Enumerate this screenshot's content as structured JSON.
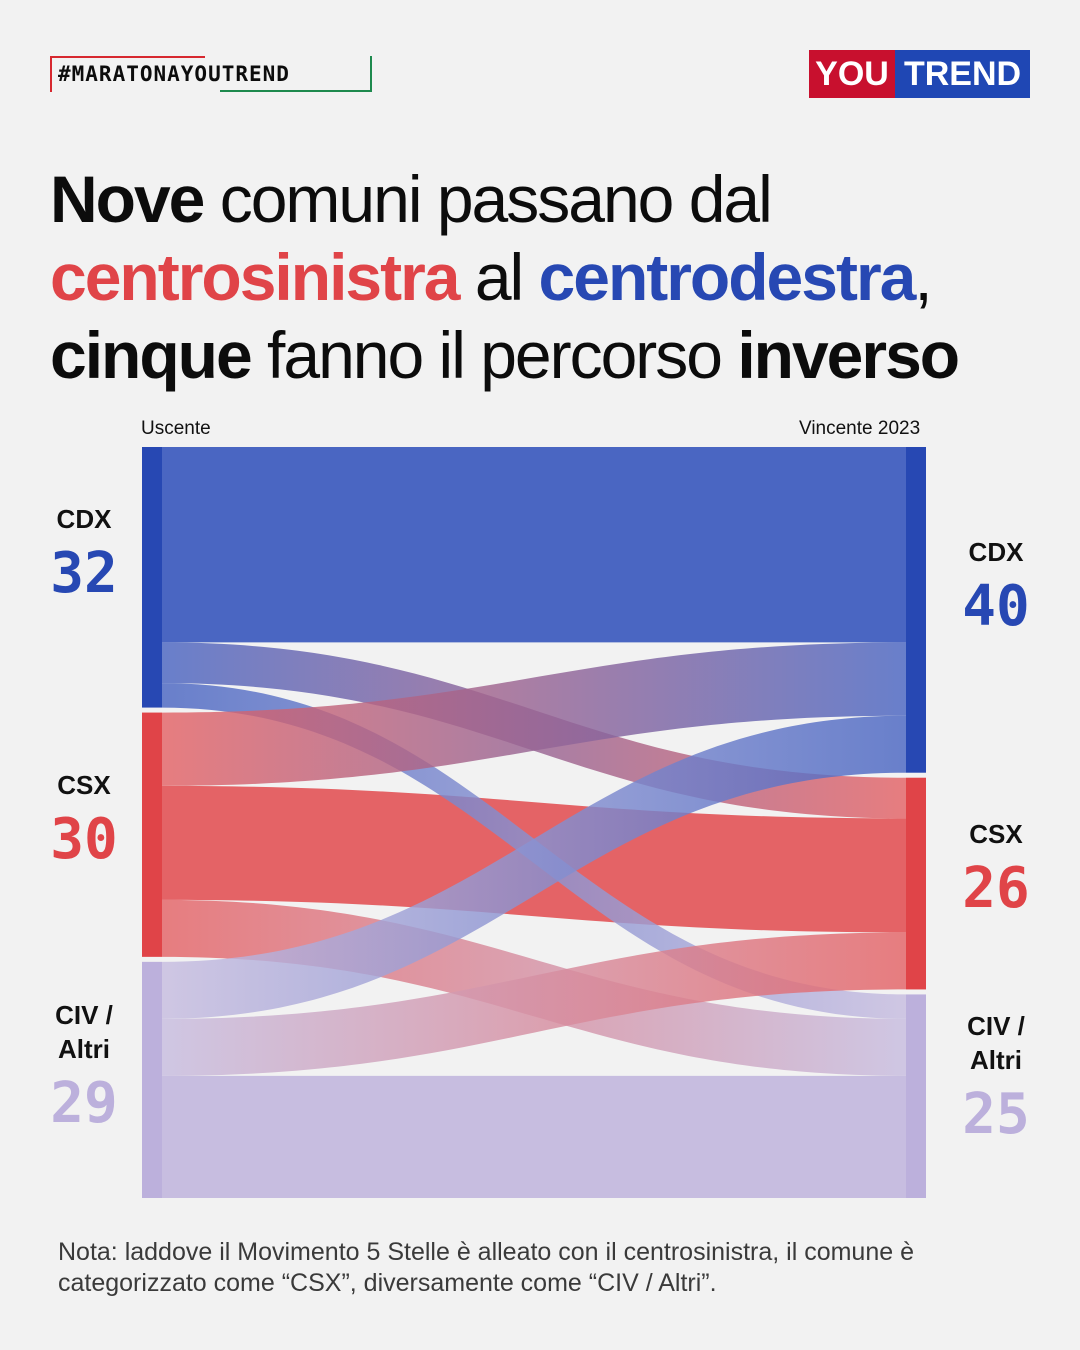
{
  "header": {
    "hashtag": "#MARATONAYOUTREND",
    "logo_part1": "YOU",
    "logo_part2": "TREND"
  },
  "title": {
    "w1": "Nove",
    "w2": " comuni passano dal",
    "w3": "centrosinistra",
    "w4": " al ",
    "w5": "centrodestra",
    "w6": ",",
    "w7": "cinque",
    "w8": " fanno il percorso ",
    "w9": "inverso"
  },
  "colors": {
    "cdx": "#2748b3",
    "csx": "#e04448",
    "civ": "#bcb0dc",
    "cdx_flow": "#4a66c2",
    "csx_flow": "#e46366",
    "civ_flow": "#c7bde0"
  },
  "chart_data": {
    "type": "sankey",
    "left_label": "Uscente",
    "right_label": "Vincente 2023",
    "left_nodes": [
      {
        "id": "cdx",
        "name": "CDX",
        "value": 32
      },
      {
        "id": "csx",
        "name": "CSX",
        "value": 30
      },
      {
        "id": "civ",
        "name": "CIV / Altri",
        "value": 29
      }
    ],
    "right_nodes": [
      {
        "id": "cdx",
        "name": "CDX",
        "value": 40
      },
      {
        "id": "csx",
        "name": "CSX",
        "value": 26
      },
      {
        "id": "civ",
        "name": "CIV / Altri",
        "value": 25
      }
    ],
    "flows": [
      {
        "from": "cdx",
        "to": "cdx",
        "value": 24
      },
      {
        "from": "cdx",
        "to": "csx",
        "value": 5
      },
      {
        "from": "cdx",
        "to": "civ",
        "value": 3
      },
      {
        "from": "csx",
        "to": "cdx",
        "value": 9
      },
      {
        "from": "csx",
        "to": "csx",
        "value": 14
      },
      {
        "from": "csx",
        "to": "civ",
        "value": 7
      },
      {
        "from": "civ",
        "to": "cdx",
        "value": 7
      },
      {
        "from": "civ",
        "to": "csx",
        "value": 7
      },
      {
        "from": "civ",
        "to": "civ",
        "value": 15
      }
    ]
  },
  "note": "Nota: laddove il Movimento 5 Stelle è alleato con il centrosinistra, il comune è categorizzato come “CSX”, diversamente come “CIV / Altri”."
}
